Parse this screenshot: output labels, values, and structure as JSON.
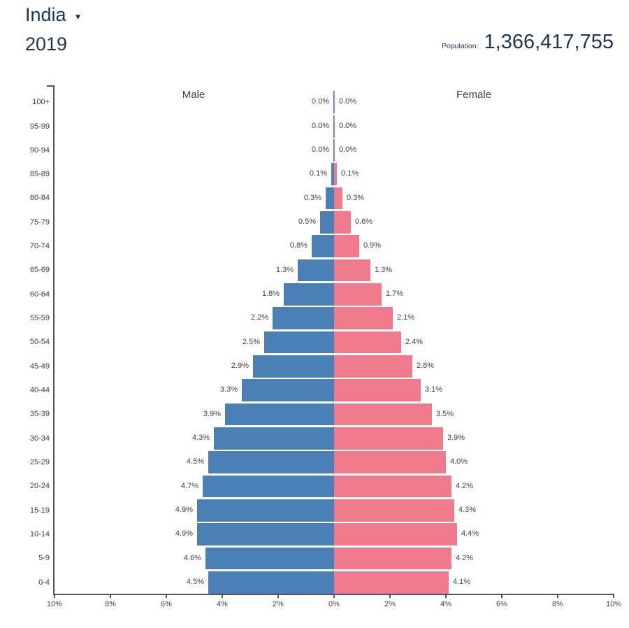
{
  "header": {
    "country": "India",
    "dropdown_icon": "▼",
    "year": "2019",
    "population_label": "Population:",
    "population_value": "1,366,417,755"
  },
  "chart": {
    "male_label": "Male",
    "female_label": "Female",
    "colors": {
      "male_bar": "#4a80b5",
      "female_bar": "#ee7a8b",
      "title_text": "#1e3553",
      "axis_line": "#4d5560",
      "label_text": "#3d434d"
    }
  },
  "chart_data": {
    "type": "bar",
    "subtype": "population_pyramid",
    "orientation": "horizontal",
    "title": "India 2019",
    "unit": "% of total population",
    "category_order": "top-to-bottom",
    "categories": [
      "100+",
      "95-99",
      "90-94",
      "85-89",
      "80-84",
      "75-79",
      "70-74",
      "65-69",
      "60-64",
      "55-59",
      "50-54",
      "45-49",
      "40-44",
      "35-39",
      "30-34",
      "25-29",
      "20-24",
      "15-19",
      "10-14",
      "5-9",
      "0-4"
    ],
    "series": [
      {
        "name": "Male",
        "side": "left",
        "color": "#4a80b5",
        "values": [
          0.0,
          0.0,
          0.0,
          0.1,
          0.3,
          0.5,
          0.8,
          1.3,
          1.8,
          2.2,
          2.5,
          2.9,
          3.3,
          3.9,
          4.3,
          4.5,
          4.7,
          4.9,
          4.9,
          4.6,
          4.5
        ]
      },
      {
        "name": "Female",
        "side": "right",
        "color": "#ee7a8b",
        "values": [
          0.0,
          0.0,
          0.0,
          0.1,
          0.3,
          0.6,
          0.9,
          1.3,
          1.7,
          2.1,
          2.4,
          2.8,
          3.1,
          3.5,
          3.9,
          4.0,
          4.2,
          4.3,
          4.4,
          4.2,
          4.1
        ]
      }
    ],
    "x_axis": {
      "max_percent": 10,
      "tick_step_percent": 2,
      "tick_labels": [
        "10%",
        "8%",
        "6%",
        "4%",
        "2%",
        "0%",
        "2%",
        "4%",
        "6%",
        "8%",
        "10%"
      ]
    },
    "value_label_format": "{value}%",
    "grid": "off",
    "legend_position": "column-headers-top"
  }
}
